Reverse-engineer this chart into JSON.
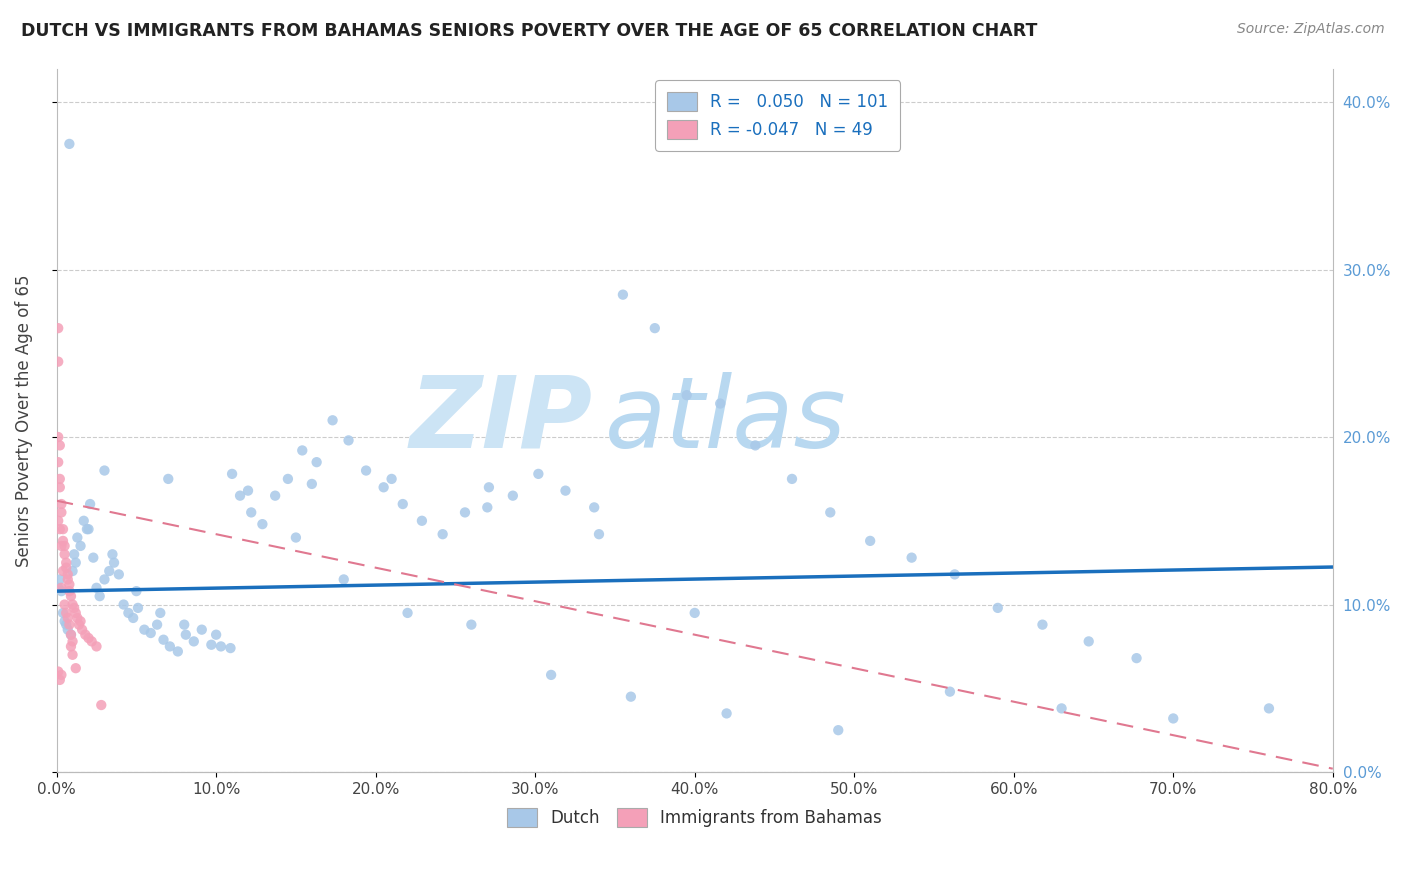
{
  "title": "DUTCH VS IMMIGRANTS FROM BAHAMAS SENIORS POVERTY OVER THE AGE OF 65 CORRELATION CHART",
  "source": "Source: ZipAtlas.com",
  "ylabel": "Seniors Poverty Over the Age of 65",
  "xlim": [
    0,
    0.8
  ],
  "ylim": [
    0,
    0.42
  ],
  "xticks": [
    0.0,
    0.1,
    0.2,
    0.3,
    0.4,
    0.5,
    0.6,
    0.7,
    0.8
  ],
  "yticks": [
    0.0,
    0.1,
    0.2,
    0.3,
    0.4
  ],
  "legend1_label": "Dutch",
  "legend2_label": "Immigrants from Bahamas",
  "R1": 0.05,
  "N1": 101,
  "R2": -0.047,
  "N2": 49,
  "color_dutch": "#a8c8e8",
  "color_bahamas": "#f4a0b8",
  "color_dutch_line": "#1a6fbd",
  "color_bahamas_line": "#e07890",
  "background_color": "#ffffff",
  "grid_color": "#cccccc",
  "dutch_x": [
    0.001,
    0.002,
    0.003,
    0.004,
    0.005,
    0.006,
    0.007,
    0.008,
    0.009,
    0.01,
    0.011,
    0.012,
    0.013,
    0.015,
    0.017,
    0.019,
    0.021,
    0.023,
    0.025,
    0.027,
    0.03,
    0.033,
    0.036,
    0.039,
    0.042,
    0.045,
    0.048,
    0.051,
    0.055,
    0.059,
    0.063,
    0.067,
    0.071,
    0.076,
    0.081,
    0.086,
    0.091,
    0.097,
    0.103,
    0.109,
    0.115,
    0.122,
    0.129,
    0.137,
    0.145,
    0.154,
    0.163,
    0.173,
    0.183,
    0.194,
    0.205,
    0.217,
    0.229,
    0.242,
    0.256,
    0.271,
    0.286,
    0.302,
    0.319,
    0.337,
    0.355,
    0.375,
    0.395,
    0.416,
    0.438,
    0.461,
    0.485,
    0.51,
    0.536,
    0.563,
    0.59,
    0.618,
    0.647,
    0.677,
    0.02,
    0.035,
    0.05,
    0.065,
    0.08,
    0.1,
    0.12,
    0.15,
    0.18,
    0.22,
    0.26,
    0.31,
    0.36,
    0.42,
    0.49,
    0.56,
    0.63,
    0.7,
    0.76,
    0.03,
    0.07,
    0.11,
    0.16,
    0.21,
    0.27,
    0.34,
    0.4
  ],
  "dutch_y": [
    0.11,
    0.115,
    0.108,
    0.095,
    0.09,
    0.088,
    0.085,
    0.375,
    0.082,
    0.12,
    0.13,
    0.125,
    0.14,
    0.135,
    0.15,
    0.145,
    0.16,
    0.128,
    0.11,
    0.105,
    0.115,
    0.12,
    0.125,
    0.118,
    0.1,
    0.095,
    0.092,
    0.098,
    0.085,
    0.083,
    0.088,
    0.079,
    0.075,
    0.072,
    0.082,
    0.078,
    0.085,
    0.076,
    0.075,
    0.074,
    0.165,
    0.155,
    0.148,
    0.165,
    0.175,
    0.192,
    0.185,
    0.21,
    0.198,
    0.18,
    0.17,
    0.16,
    0.15,
    0.142,
    0.155,
    0.17,
    0.165,
    0.178,
    0.168,
    0.158,
    0.285,
    0.265,
    0.225,
    0.22,
    0.195,
    0.175,
    0.155,
    0.138,
    0.128,
    0.118,
    0.098,
    0.088,
    0.078,
    0.068,
    0.145,
    0.13,
    0.108,
    0.095,
    0.088,
    0.082,
    0.168,
    0.14,
    0.115,
    0.095,
    0.088,
    0.058,
    0.045,
    0.035,
    0.025,
    0.048,
    0.038,
    0.032,
    0.038,
    0.18,
    0.175,
    0.178,
    0.172,
    0.175,
    0.158,
    0.142,
    0.095
  ],
  "bahamas_x": [
    0.001,
    0.001,
    0.001,
    0.002,
    0.002,
    0.002,
    0.003,
    0.003,
    0.003,
    0.004,
    0.004,
    0.005,
    0.005,
    0.006,
    0.006,
    0.007,
    0.007,
    0.008,
    0.008,
    0.009,
    0.009,
    0.01,
    0.01,
    0.011,
    0.012,
    0.013,
    0.014,
    0.015,
    0.016,
    0.018,
    0.02,
    0.022,
    0.025,
    0.028,
    0.001,
    0.001,
    0.001,
    0.002,
    0.002,
    0.003,
    0.003,
    0.004,
    0.005,
    0.006,
    0.007,
    0.008,
    0.009,
    0.01,
    0.012
  ],
  "bahamas_y": [
    0.265,
    0.2,
    0.15,
    0.195,
    0.17,
    0.145,
    0.16,
    0.135,
    0.11,
    0.145,
    0.12,
    0.135,
    0.1,
    0.125,
    0.095,
    0.118,
    0.092,
    0.112,
    0.088,
    0.105,
    0.082,
    0.1,
    0.078,
    0.098,
    0.095,
    0.092,
    0.088,
    0.09,
    0.085,
    0.082,
    0.08,
    0.078,
    0.075,
    0.04,
    0.245,
    0.185,
    0.06,
    0.175,
    0.055,
    0.155,
    0.058,
    0.138,
    0.13,
    0.122,
    0.115,
    0.108,
    0.075,
    0.07,
    0.062
  ],
  "watermark_zip": "ZIP",
  "watermark_atlas": "atlas",
  "watermark_color": "#cce4f5"
}
